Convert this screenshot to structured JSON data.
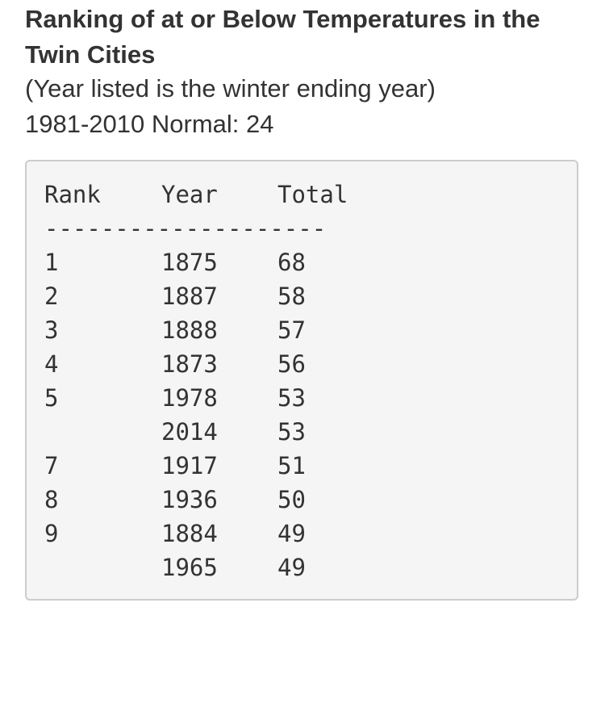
{
  "heading": {
    "title": "Ranking of at or Below Temperatures in the Twin Cities",
    "subtitle": "(Year listed is the winter ending year)",
    "normal": "1981-2010 Normal: 24"
  },
  "table": {
    "headers": {
      "rank": "Rank",
      "year": "Year",
      "total": "Total"
    },
    "divider": "--------------------",
    "rows": [
      {
        "rank": "1",
        "year": "1875",
        "total": "68"
      },
      {
        "rank": "2",
        "year": "1887",
        "total": "58"
      },
      {
        "rank": "3",
        "year": "1888",
        "total": "57"
      },
      {
        "rank": "4",
        "year": "1873",
        "total": "56"
      },
      {
        "rank": "5",
        "year": "1978",
        "total": "53"
      },
      {
        "rank": "",
        "year": "2014",
        "total": "53"
      },
      {
        "rank": "7",
        "year": "1917",
        "total": "51"
      },
      {
        "rank": "8",
        "year": "1936",
        "total": "50"
      },
      {
        "rank": "9",
        "year": "1884",
        "total": "49"
      },
      {
        "rank": "",
        "year": "1965",
        "total": "49"
      }
    ]
  }
}
